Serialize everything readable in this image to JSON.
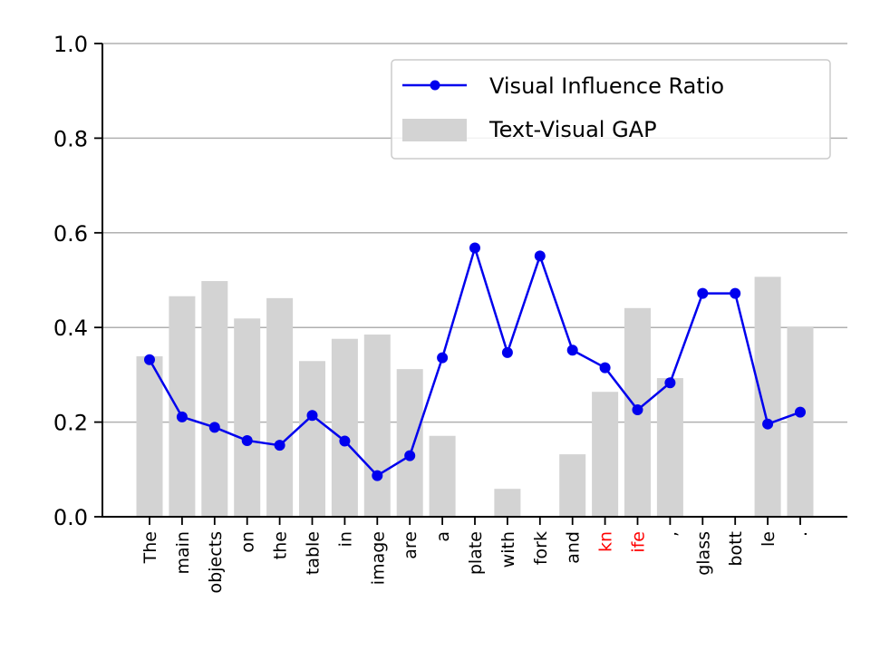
{
  "chart_data": {
    "type": "bar+line",
    "categories": [
      "The",
      "main",
      "objects",
      "on",
      "the",
      "table",
      "in",
      "image",
      "are",
      "a",
      "plate",
      "with",
      "fork",
      "and",
      "kn",
      "ife",
      ",",
      "glass",
      "bott",
      "le",
      "."
    ],
    "highlighted_categories": [
      "kn",
      "ife"
    ],
    "highlight_color": "#ff0000",
    "ylim": [
      0,
      1.0
    ],
    "yticks": [
      0.0,
      0.2,
      0.4,
      0.6,
      0.8,
      1.0
    ],
    "ytick_labels": [
      "0.0",
      "0.2",
      "0.4",
      "0.6",
      "0.8",
      "1.0"
    ],
    "grid": "y",
    "legend_position": "top-right",
    "series": [
      {
        "name": "Visual Influence Ratio",
        "kind": "line",
        "color": "#0000ee",
        "values": [
          0.332,
          0.211,
          0.189,
          0.161,
          0.151,
          0.214,
          0.16,
          0.087,
          0.129,
          0.336,
          0.568,
          0.347,
          0.551,
          0.352,
          0.315,
          0.226,
          0.283,
          0.472,
          0.472,
          0.196,
          0.221
        ]
      },
      {
        "name": "Text-Visual GAP",
        "kind": "bar",
        "color": "#d3d3d3",
        "values": [
          0.339,
          0.466,
          0.498,
          0.419,
          0.462,
          0.329,
          0.376,
          0.385,
          0.312,
          0.171,
          0.0,
          0.059,
          0.0,
          0.132,
          0.264,
          0.441,
          0.293,
          0.0,
          0.0,
          0.507,
          0.402
        ]
      }
    ]
  }
}
